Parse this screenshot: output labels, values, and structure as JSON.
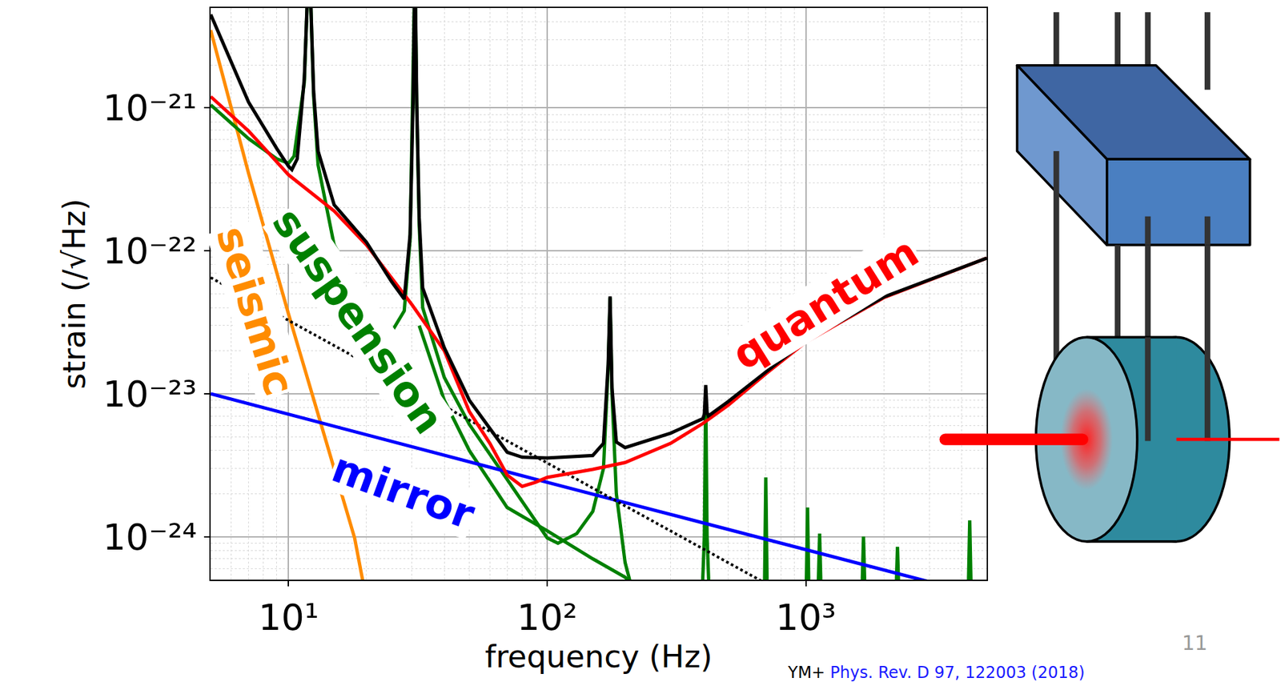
{
  "chart_data": {
    "type": "line",
    "x_label": "frequency (Hz)",
    "y_label": "strain (/√Hz)",
    "log": true,
    "grid": true,
    "xlim": [
      5,
      5000
    ],
    "ylim": [
      5e-25,
      5e-21
    ],
    "xticks": [
      {
        "value": 10,
        "label": "10¹"
      },
      {
        "value": 100,
        "label": "10²"
      },
      {
        "value": 1000,
        "label": "10³"
      }
    ],
    "yticks": [
      {
        "value": 1e-24,
        "label": "10⁻²⁴"
      },
      {
        "value": 1e-23,
        "label": "10⁻²³"
      },
      {
        "value": 1e-22,
        "label": "10⁻²²"
      },
      {
        "value": 1e-21,
        "label": "10⁻²¹"
      }
    ],
    "series": [
      {
        "name": "seismic",
        "color": "#ff8c00",
        "line_style": "solid",
        "x": [
          5,
          7,
          10,
          12,
          15,
          18,
          20
        ],
        "values": [
          3.5e-21,
          3.5e-22,
          3.6e-23,
          1.2e-23,
          3e-24,
          9.8e-25,
          3.6e-25
        ]
      },
      {
        "name": "suspension",
        "color": "#008000",
        "line_style": "solid",
        "x": [
          5,
          7,
          9,
          10,
          10.5,
          11.5,
          11.9,
          12.1,
          12.5,
          13,
          15,
          20,
          25,
          28,
          29.5,
          30.3,
          30.8,
          31.3,
          32,
          33,
          40,
          50,
          70,
          100,
          110,
          130,
          150,
          165,
          172,
          175,
          178,
          185,
          200,
          215,
          null,
          32,
          40,
          50,
          70,
          100,
          150,
          200,
          250,
          null,
          395,
          405,
          410,
          415,
          425,
          null,
          690,
          700,
          710,
          null,
          1000,
          1015,
          1030,
          null,
          1110,
          1130,
          1150,
          null,
          1640,
          1670,
          1700,
          null,
          2220,
          2260,
          2300,
          null,
          4230,
          4300,
          4370
        ],
        "values": [
          1.05e-21,
          6.1e-22,
          4.4e-22,
          4.1e-22,
          4.6e-22,
          1.5e-21,
          8e-21,
          8e-21,
          1.2e-21,
          4e-22,
          1.1e-22,
          4.4e-23,
          2.7e-23,
          3.8e-23,
          1.2e-22,
          1e-21,
          1e-20,
          1e-21,
          1.5e-22,
          4e-23,
          1.3e-23,
          6.1e-24,
          2.5e-24,
          9.8e-25,
          9e-25,
          1.05e-24,
          1.5e-24,
          3e-24,
          1.5e-23,
          4.7e-23,
          1e-23,
          2e-24,
          6.6e-25,
          4e-25,
          null,
          3e-23,
          9e-24,
          4e-24,
          1.6e-24,
          1.1e-24,
          7e-25,
          5.2e-25,
          3.5e-25,
          null,
          3e-25,
          1e-24,
          1.05e-23,
          1e-24,
          3e-25,
          null,
          3e-25,
          2.6e-24,
          3e-25,
          null,
          3e-25,
          1.6e-24,
          3e-25,
          null,
          3e-25,
          1.05e-24,
          3e-25,
          null,
          3e-25,
          1e-24,
          3e-25,
          null,
          3e-25,
          8.5e-25,
          3e-25,
          null,
          3e-25,
          1.3e-24,
          3e-25
        ]
      },
      {
        "name": "mirror",
        "color": "#0000ff",
        "line_style": "solid",
        "x": [
          5,
          100,
          5000
        ],
        "values": [
          1e-23,
          2.4e-24,
          3.8e-25
        ]
      },
      {
        "color": "#000000",
        "line_style": "dotted",
        "x": [
          5,
          100,
          1000
        ],
        "values": [
          6.5e-23,
          3.3e-24,
          3.3e-25
        ]
      },
      {
        "name": "quantum",
        "color": "#ff0000",
        "line_style": "solid",
        "x": [
          5,
          7,
          10,
          15,
          20,
          30,
          40,
          50,
          60,
          70,
          80,
          90,
          100,
          150,
          200,
          300,
          400,
          500,
          700,
          1000,
          2000,
          5000
        ],
        "values": [
          1.2e-21,
          6.9e-22,
          3.4e-22,
          1.9e-22,
          1.1e-22,
          4.2e-23,
          2e-23,
          7.5e-24,
          4.5e-24,
          2.7e-24,
          2.25e-24,
          2.4e-24,
          2.6e-24,
          2.96e-24,
          3.3e-24,
          4.5e-24,
          6.2e-24,
          8.3e-24,
          1.38e-23,
          2.3e-23,
          4.7e-23,
          8.9e-23
        ]
      },
      {
        "color": "#000000",
        "line_style": "solid",
        "x": [
          5,
          7,
          9,
          10,
          10.3,
          10.8,
          11.5,
          11.9,
          12.1,
          12.5,
          13,
          15,
          20,
          25,
          28,
          29.5,
          30.3,
          30.8,
          31.3,
          32,
          33,
          40,
          50,
          70,
          80,
          100,
          150,
          165,
          172,
          175,
          178,
          185,
          200,
          300,
          400,
          405,
          410,
          415,
          420,
          500,
          700,
          1000,
          2000,
          5000
        ],
        "values": [
          4.5e-21,
          1.1e-21,
          5.2e-22,
          3.9e-22,
          3.7e-22,
          4.4e-22,
          1.6e-21,
          8e-21,
          8e-21,
          1.3e-21,
          5e-22,
          2.1e-22,
          1.15e-22,
          6.1e-23,
          4.6e-23,
          1.3e-22,
          1.1e-21,
          1e-20,
          1.1e-21,
          1.7e-22,
          5.5e-23,
          2.1e-23,
          9e-24,
          3.9e-24,
          3.6e-24,
          3.55e-24,
          3.7e-24,
          4.5e-24,
          1.6e-23,
          4.8e-23,
          1.1e-23,
          4.6e-24,
          4.2e-24,
          5.3e-24,
          6.7e-24,
          7.2e-24,
          1.15e-23,
          7.4e-24,
          7e-24,
          8.8e-24,
          1.42e-23,
          2.35e-23,
          4.75e-23,
          8.9e-23
        ]
      }
    ],
    "page_number": "11",
    "citation": {
      "author": "YM+",
      "reference": "Phys. Rev. D 97, 122003 (2018)"
    }
  }
}
